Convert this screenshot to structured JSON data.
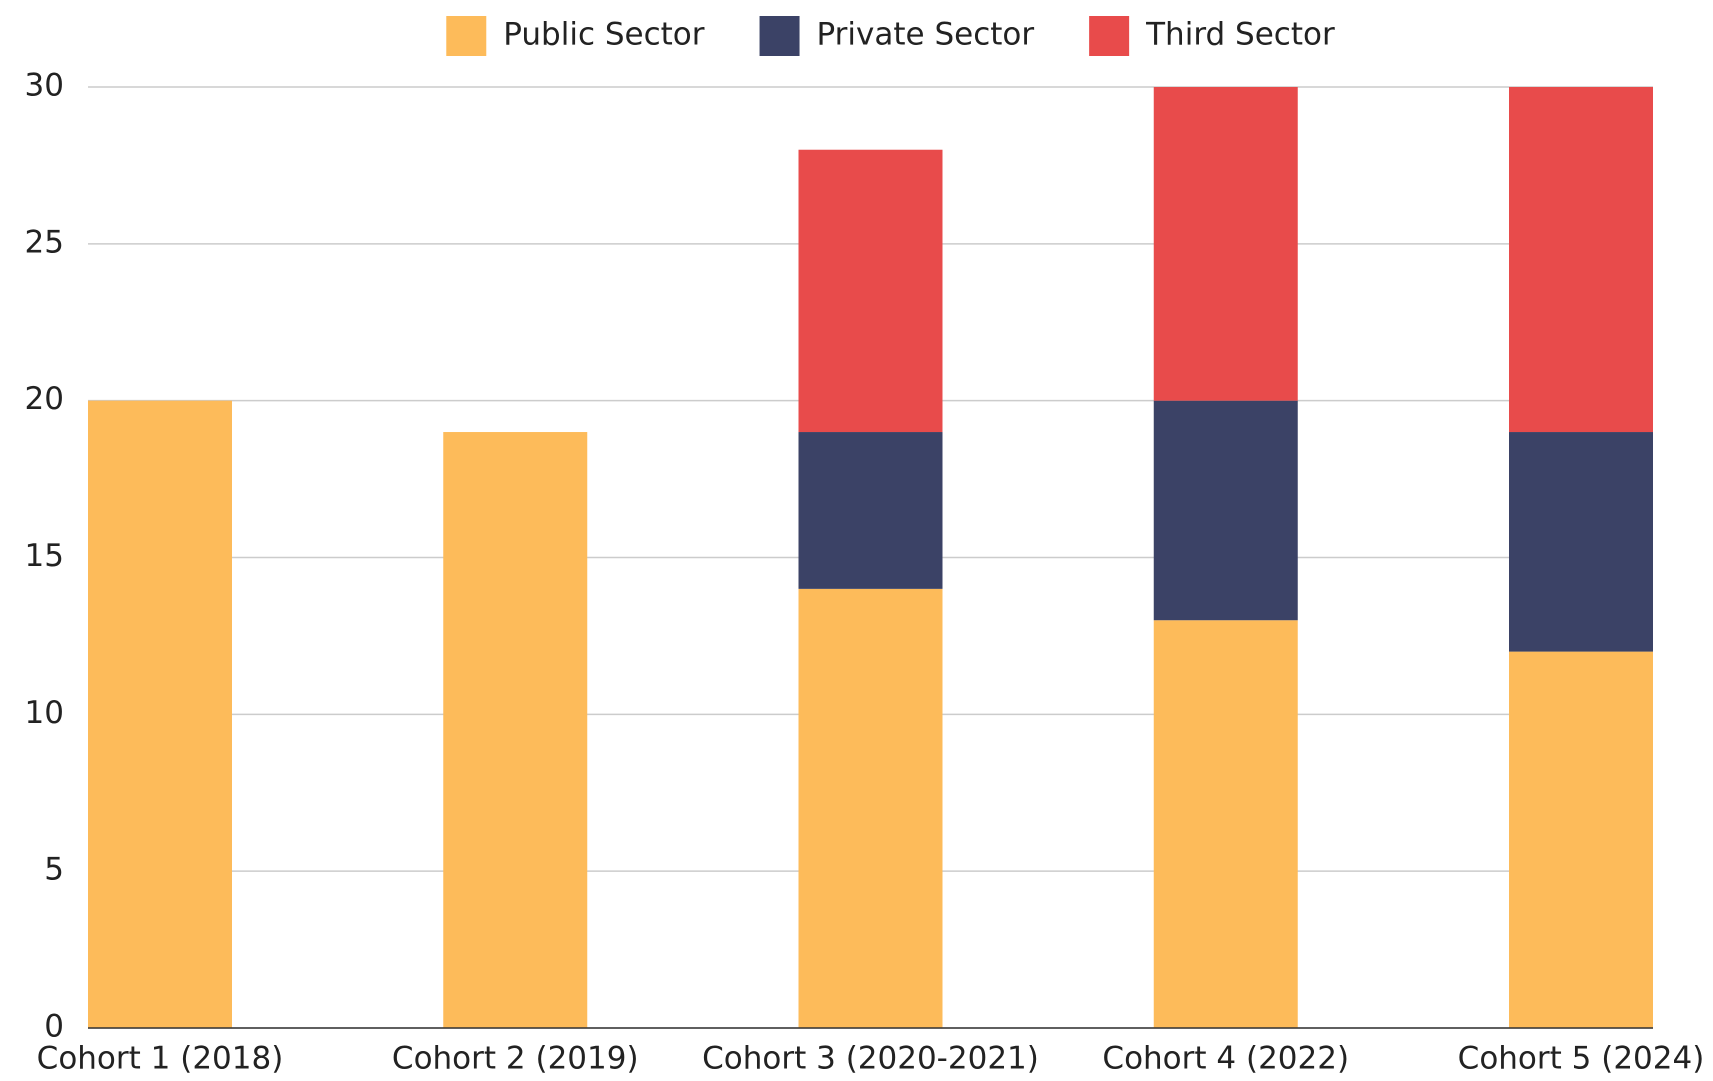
{
  "chart_data": {
    "type": "stacked_bar",
    "categories": [
      "Cohort 1 (2018)",
      "Cohort 2 (2019)",
      "Cohort 3 (2020-2021)",
      "Cohort 4 (2022)",
      "Cohort 5 (2024)"
    ],
    "series": [
      {
        "name": "Public Sector",
        "color": "#fdbb5a",
        "values": [
          20,
          19,
          14,
          13,
          12
        ]
      },
      {
        "name": "Private Sector",
        "color": "#3b4266",
        "values": [
          0,
          0,
          5,
          7,
          7
        ]
      },
      {
        "name": "Third Sector",
        "color": "#e84b4b",
        "values": [
          0,
          0,
          9,
          10,
          11
        ]
      }
    ],
    "ylim": [
      0,
      30
    ],
    "yticks": [
      0,
      5,
      10,
      15,
      20,
      25,
      30
    ],
    "grid": true,
    "legend": "top"
  }
}
